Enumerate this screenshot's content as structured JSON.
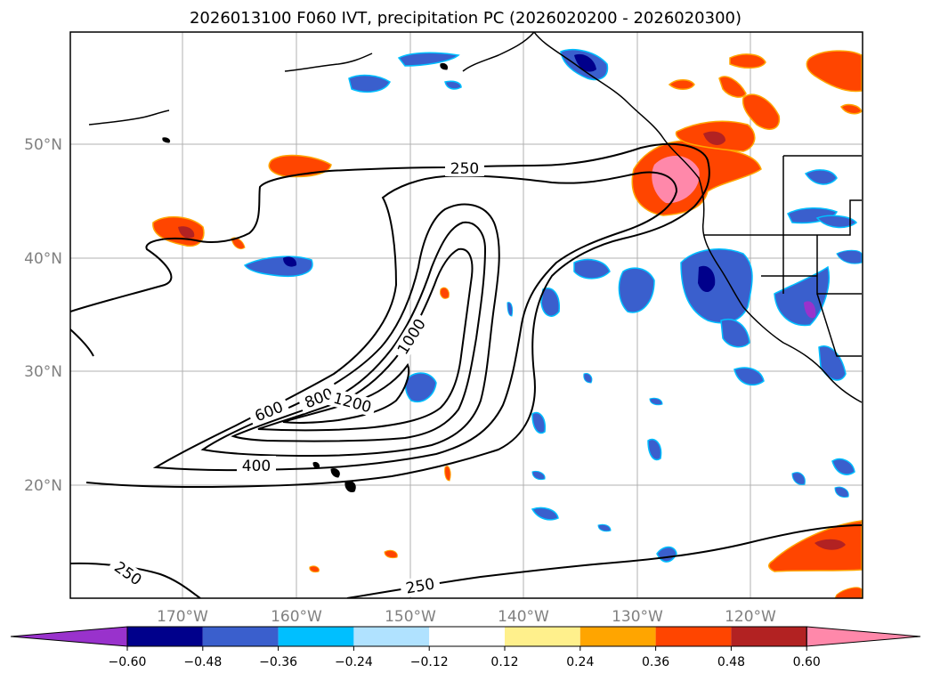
{
  "title": "2026013100 F060 IVT, precipitation PC (2026020200 - 2026020300)",
  "longitude_labels": [
    "170°W",
    "160°W",
    "150°W",
    "140°W",
    "130°W",
    "120°W"
  ],
  "latitude_labels": [
    "50°N",
    "40°N",
    "30°N",
    "20°N"
  ],
  "ivt_contour_labels": [
    "250",
    "400",
    "600",
    "800",
    "1000",
    "1200",
    "250",
    "250"
  ],
  "colorbar": {
    "tick_labels": [
      "−0.60",
      "−0.48",
      "−0.36",
      "−0.24",
      "−0.12",
      "0.12",
      "0.24",
      "0.36",
      "0.48",
      "0.60"
    ],
    "colors": [
      "#9932cc",
      "#00008b",
      "#3a5fcd",
      "#00bfff",
      "#b0e2ff",
      "#ffffff",
      "#fff08c",
      "#ffa500",
      "#ff4500",
      "#b22222",
      "#ff88aa"
    ]
  },
  "colors": {
    "contour": "#000000",
    "gridline": "#b0b0b0",
    "coastline": "#000000"
  }
}
